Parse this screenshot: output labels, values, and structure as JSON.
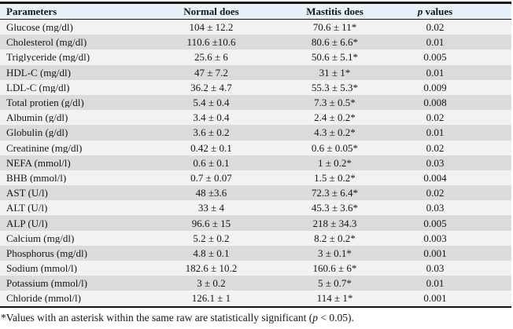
{
  "table": {
    "header": {
      "parameters": "Parameters",
      "normal": "Normal does",
      "mastitis": "Mastitis does",
      "p_symbol": "p",
      "p_rest": " values"
    },
    "rows": [
      {
        "parameter": "Glucose (mg/dl)",
        "normal": "104 ± 12.2",
        "mastitis": "70.6 ± 11*",
        "p": "0.02"
      },
      {
        "parameter": "Cholesterol (mg/dl)",
        "normal": "110.6 ±10.6",
        "mastitis": "80.6 ± 6.6*",
        "p": "0.01"
      },
      {
        "parameter": "Triglyceride (mg/dl)",
        "normal": "25.6 ± 6",
        "mastitis": "50.6 ± 5.1*",
        "p": "0.005"
      },
      {
        "parameter": "HDL-C (mg/dl)",
        "normal": "47 ± 7.2",
        "mastitis": "31 ± 1*",
        "p": "0.01"
      },
      {
        "parameter": "LDL-C (mg/dl)",
        "normal": "36.2 ± 4.7",
        "mastitis": "55.3 ± 5.3*",
        "p": "0.009"
      },
      {
        "parameter": "Total protien (g/dl)",
        "normal": "5.4 ± 0.4",
        "mastitis": "7.3 ± 0.5*",
        "p": "0.008"
      },
      {
        "parameter": "Albumin (g/dl)",
        "normal": "3.4 ± 0.4",
        "mastitis": "2.4 ± 0.2*",
        "p": "0.02"
      },
      {
        "parameter": "Globulin (g/dl)",
        "normal": "3.6 ± 0.2",
        "mastitis": "4.3 ± 0.2*",
        "p": "0.01"
      },
      {
        "parameter": "Creatinine (mg/dl)",
        "normal": "0.42 ± 0.1",
        "mastitis": "0.6 ± 0.05*",
        "p": "0.02"
      },
      {
        "parameter": "NEFA (mmol/l)",
        "normal": "0.6 ± 0.1",
        "mastitis": "1 ± 0.2*",
        "p": "0.03"
      },
      {
        "parameter": "BHB (mmol/l)",
        "normal": "0.7 ± 0.07",
        "mastitis": "1.5 ± 0.2*",
        "p": "0.004"
      },
      {
        "parameter": "AST (U/l)",
        "normal": "48 ±3.6",
        "mastitis": "72.3 ± 6.4*",
        "p": "0.02"
      },
      {
        "parameter": "ALT (U/l)",
        "normal": "33 ± 4",
        "mastitis": "45.3 ± 3.6*",
        "p": "0.03"
      },
      {
        "parameter": "ALP (U/l)",
        "normal": "96.6 ± 15",
        "mastitis": "218 ±  34.3",
        "p": "0.005"
      },
      {
        "parameter": "Calcium (mg/dl)",
        "normal": "5.2 ± 0.2",
        "mastitis": "8.2 ± 0.2*",
        "p": "0.003"
      },
      {
        "parameter": "Phosphorus (mg/dl)",
        "normal": "4.8  ± 0.1",
        "mastitis": "3 ± 0.1*",
        "p": "0.001"
      },
      {
        "parameter": "Sodium  (mmol/l)",
        "normal": "182.6 ± 10.2",
        "mastitis": "160.6 ± 6*",
        "p": "0.03"
      },
      {
        "parameter": "Potassium  (mmol/l)",
        "normal": "3 ± 0.2",
        "mastitis": "5 ± 0.7*",
        "p": "0.01"
      },
      {
        "parameter": "Chloride (mmol/l)",
        "normal": "126.1 ± 1",
        "mastitis": "114 ± 1*",
        "p": "0.001"
      }
    ],
    "footnote": {
      "pre": "*Values with an asterisk within the same raw are statistically significant (",
      "p_symbol": "p",
      "post": " < 0.05)."
    }
  },
  "colors": {
    "header_bg": "#e8f1f9",
    "row_light": "#f2f2f3",
    "row_dark": "#d9dbdc",
    "border": "#141414",
    "text": "#161616"
  }
}
